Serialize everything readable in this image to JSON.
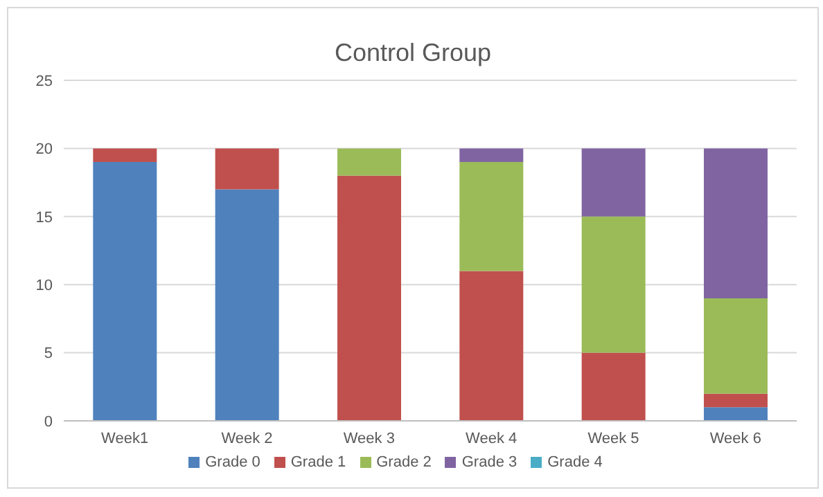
{
  "chart_data": {
    "type": "bar",
    "title": "Control Group",
    "stacked": true,
    "categories": [
      "Week1",
      "Week 2",
      "Week 3",
      "Week 4",
      "Week 5",
      "Week 6"
    ],
    "series": [
      {
        "name": "Grade 0",
        "color": "#4f81bd",
        "values": [
          19,
          17,
          0,
          0,
          0,
          1
        ]
      },
      {
        "name": "Grade 1",
        "color": "#c0504d",
        "values": [
          1,
          3,
          18,
          11,
          5,
          1
        ]
      },
      {
        "name": "Grade 2",
        "color": "#9bbb59",
        "values": [
          0,
          0,
          2,
          8,
          10,
          7
        ]
      },
      {
        "name": "Grade 3",
        "color": "#8064a2",
        "values": [
          0,
          0,
          0,
          1,
          5,
          11
        ]
      },
      {
        "name": "Grade 4",
        "color": "#4bacc6",
        "values": [
          0,
          0,
          0,
          0,
          0,
          0
        ]
      }
    ],
    "ylim": [
      0,
      25
    ],
    "yticks": [
      0,
      5,
      10,
      15,
      20,
      25
    ],
    "grid": "y",
    "legend": "bottom"
  }
}
